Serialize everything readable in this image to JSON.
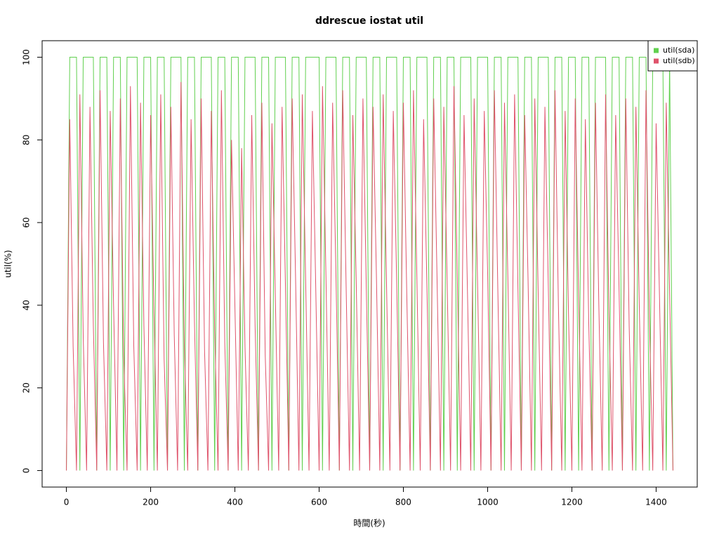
{
  "chart_data": {
    "type": "line",
    "title": "ddrescue iostat util",
    "xlabel": "時間(秒)",
    "ylabel": "util(%)",
    "x": [
      0,
      8,
      16,
      24,
      32,
      40,
      48,
      56,
      64,
      72,
      80,
      88,
      96,
      104,
      112,
      120,
      128,
      136,
      144,
      152,
      160,
      168,
      176,
      184,
      192,
      200,
      208,
      216,
      224,
      232,
      240,
      248,
      256,
      264,
      272,
      280,
      288,
      296,
      304,
      312,
      320,
      328,
      336,
      344,
      352,
      360,
      368,
      376,
      384,
      392,
      400,
      408,
      416,
      424,
      432,
      440,
      448,
      456,
      464,
      472,
      480,
      488,
      496,
      504,
      512,
      520,
      528,
      536,
      544,
      552,
      560,
      568,
      576,
      584,
      592,
      600,
      608,
      616,
      624,
      632,
      640,
      648,
      656,
      664,
      672,
      680,
      688,
      696,
      704,
      712,
      720,
      728,
      736,
      744,
      752,
      760,
      768,
      776,
      784,
      792,
      800,
      808,
      816,
      824,
      832,
      840,
      848,
      856,
      864,
      872,
      880,
      888,
      896,
      904,
      912,
      920,
      928,
      936,
      944,
      952,
      960,
      968,
      976,
      984,
      992,
      1000,
      1008,
      1016,
      1024,
      1032,
      1040,
      1048,
      1056,
      1064,
      1072,
      1080,
      1088,
      1096,
      1104,
      1112,
      1120,
      1128,
      1136,
      1144,
      1152,
      1160,
      1168,
      1176,
      1184,
      1192,
      1200,
      1208,
      1216,
      1224,
      1232,
      1240,
      1248,
      1256,
      1264,
      1272,
      1280,
      1288,
      1296,
      1304,
      1312,
      1320,
      1328,
      1336,
      1344,
      1352,
      1360,
      1368,
      1376,
      1384,
      1392,
      1400,
      1408,
      1416,
      1424,
      1432,
      1440
    ],
    "series": [
      {
        "name": "util(sda)",
        "color": "#61d04f",
        "values": [
          0,
          100,
          100,
          100,
          0,
          100,
          100,
          100,
          100,
          0,
          100,
          100,
          100,
          0,
          100,
          100,
          100,
          0,
          100,
          100,
          100,
          100,
          0,
          100,
          100,
          100,
          0,
          100,
          100,
          100,
          0,
          100,
          100,
          100,
          100,
          0,
          100,
          100,
          100,
          0,
          100,
          100,
          100,
          100,
          0,
          100,
          100,
          100,
          0,
          100,
          100,
          100,
          0,
          100,
          100,
          100,
          100,
          0,
          100,
          100,
          100,
          0,
          100,
          100,
          100,
          100,
          0,
          100,
          100,
          100,
          0,
          100,
          100,
          100,
          100,
          100,
          0,
          100,
          100,
          100,
          100,
          0,
          100,
          100,
          100,
          0,
          100,
          100,
          100,
          100,
          0,
          100,
          100,
          100,
          0,
          100,
          100,
          100,
          100,
          0,
          100,
          100,
          100,
          0,
          100,
          100,
          100,
          100,
          0,
          100,
          100,
          100,
          0,
          100,
          100,
          100,
          0,
          100,
          100,
          100,
          100,
          0,
          100,
          100,
          100,
          100,
          0,
          100,
          100,
          100,
          0,
          100,
          100,
          100,
          100,
          0,
          100,
          100,
          100,
          0,
          100,
          100,
          100,
          100,
          0,
          100,
          100,
          100,
          0,
          100,
          100,
          100,
          0,
          100,
          100,
          100,
          0,
          100,
          100,
          100,
          100,
          0,
          100,
          100,
          100,
          0,
          100,
          100,
          100,
          0,
          100,
          100,
          100,
          0,
          100,
          100,
          100,
          100,
          0,
          100,
          0
        ]
      },
      {
        "name": "util(sdb)",
        "color": "#df536b",
        "values": [
          0,
          85,
          30,
          0,
          91,
          32,
          0,
          88,
          35,
          0,
          92,
          31,
          0,
          87,
          40,
          0,
          90,
          28,
          0,
          93,
          30,
          0,
          89,
          35,
          0,
          86,
          38,
          0,
          91,
          27,
          0,
          88,
          33,
          0,
          94,
          30,
          0,
          85,
          36,
          0,
          90,
          29,
          0,
          87,
          34,
          0,
          92,
          31,
          0,
          80,
          40,
          0,
          78,
          30,
          0,
          86,
          35,
          0,
          89,
          28,
          0,
          84,
          42,
          0,
          88,
          45,
          0,
          90,
          47,
          0,
          91,
          46,
          0,
          87,
          44,
          0,
          93,
          48,
          0,
          89,
          47,
          0,
          92,
          45,
          0,
          86,
          46,
          0,
          90,
          44,
          0,
          88,
          47,
          0,
          91,
          45,
          0,
          87,
          46,
          0,
          89,
          43,
          0,
          92,
          47,
          0,
          85,
          44,
          0,
          90,
          46,
          0,
          88,
          45,
          0,
          93,
          47,
          0,
          86,
          44,
          0,
          90,
          46,
          0,
          87,
          48,
          0,
          92,
          45,
          0,
          89,
          47,
          0,
          91,
          44,
          0,
          86,
          46,
          0,
          90,
          43,
          0,
          88,
          45,
          0,
          92,
          40,
          0,
          87,
          38,
          0,
          90,
          42,
          0,
          85,
          36,
          0,
          89,
          40,
          0,
          91,
          38,
          0,
          86,
          44,
          0,
          90,
          35,
          0,
          88,
          40,
          0,
          92,
          37,
          0,
          84,
          42,
          0,
          89,
          43,
          0
        ]
      }
    ],
    "xlim": [
      -57.6,
      1497.6
    ],
    "ylim": [
      -4,
      104
    ],
    "xticks": [
      0,
      200,
      400,
      600,
      800,
      1000,
      1200,
      1400
    ],
    "yticks": [
      0,
      20,
      40,
      60,
      80,
      100
    ],
    "legend": "top-right"
  }
}
